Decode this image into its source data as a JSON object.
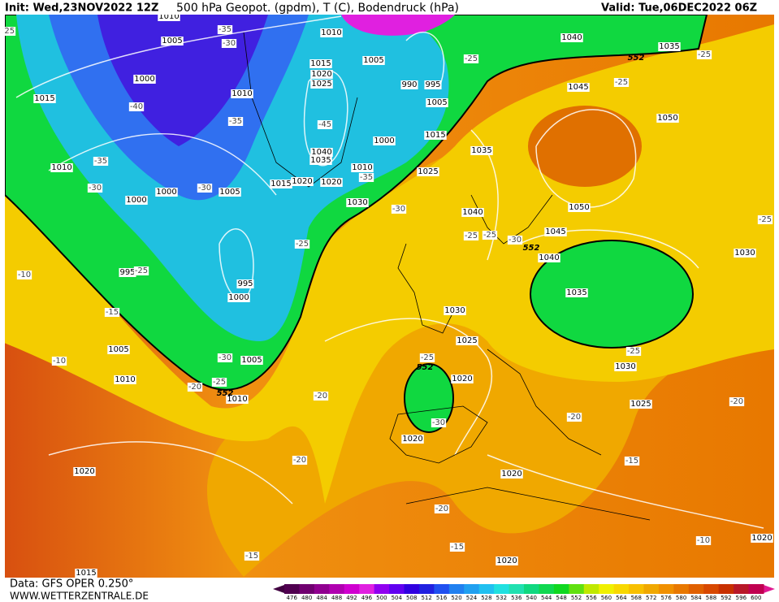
{
  "header": {
    "init": "Init: Wed,23NOV2022 12Z",
    "title": "500 hPa Geopot. (gpdm), T (C), Bodendruck (hPa)",
    "valid": "Valid: Tue,06DEC2022 06Z"
  },
  "footer": {
    "data": "Data: GFS OPER 0.250°",
    "site": "WWW.WETTERZENTRALE.DE"
  },
  "colorbar": {
    "values": [
      476,
      480,
      484,
      488,
      492,
      496,
      500,
      504,
      508,
      512,
      516,
      520,
      524,
      528,
      532,
      536,
      540,
      544,
      548,
      552,
      556,
      560,
      564,
      568,
      572,
      576,
      580,
      584,
      588,
      592,
      596,
      600
    ],
    "colors": [
      "#500050",
      "#700070",
      "#900090",
      "#b000b0",
      "#d000d0",
      "#e020e0",
      "#9000f0",
      "#6000f0",
      "#3000e0",
      "#2020e0",
      "#2050f0",
      "#2080f0",
      "#20a0f0",
      "#20c0f0",
      "#20e0e0",
      "#20e0b0",
      "#10d880",
      "#10d850",
      "#10d820",
      "#60e010",
      "#c0e800",
      "#f0f000",
      "#f8d800",
      "#f8c000",
      "#f0a800",
      "#f09000",
      "#e87800",
      "#e06000",
      "#d84800",
      "#c83000",
      "#b81828",
      "#c00050"
    ]
  },
  "map": {
    "pressure_labels": [
      "1010",
      "1005",
      "1000",
      "1015",
      "1010",
      "1000",
      "1000",
      "1005",
      "1010",
      "1010",
      "1005",
      "1015",
      "1020",
      "1025",
      "990",
      "995",
      "1005",
      "1015",
      "1000",
      "1040",
      "1035",
      "1015",
      "1020",
      "1020",
      "1010",
      "1025",
      "1030",
      "995",
      "995",
      "1000",
      "1005",
      "1010",
      "1005",
      "1010",
      "1040",
      "1035",
      "1045",
      "1050",
      "1035",
      "1040",
      "1050",
      "1045",
      "1040",
      "1035",
      "1030",
      "1030",
      "1025",
      "1030",
      "1025",
      "1020",
      "1020",
      "1020",
      "1020",
      "1020",
      "1020",
      "1015"
    ],
    "temperature_labels": [
      "-35",
      "-30",
      "-40",
      "-35",
      "-35",
      "-30",
      "-30",
      "-25",
      "-25",
      "-30",
      "-35",
      "-45",
      "-25",
      "-25",
      "-25",
      "-25",
      "-25",
      "-25",
      "-30",
      "-10",
      "-15",
      "-10",
      "-20",
      "-25",
      "-30",
      "-20",
      "-25",
      "-30",
      "-20",
      "-20",
      "-25",
      "-20",
      "-15",
      "-20",
      "-15",
      "-15",
      "-10",
      "-25"
    ],
    "height_labels": [
      "552",
      "552",
      "552",
      "552"
    ]
  }
}
